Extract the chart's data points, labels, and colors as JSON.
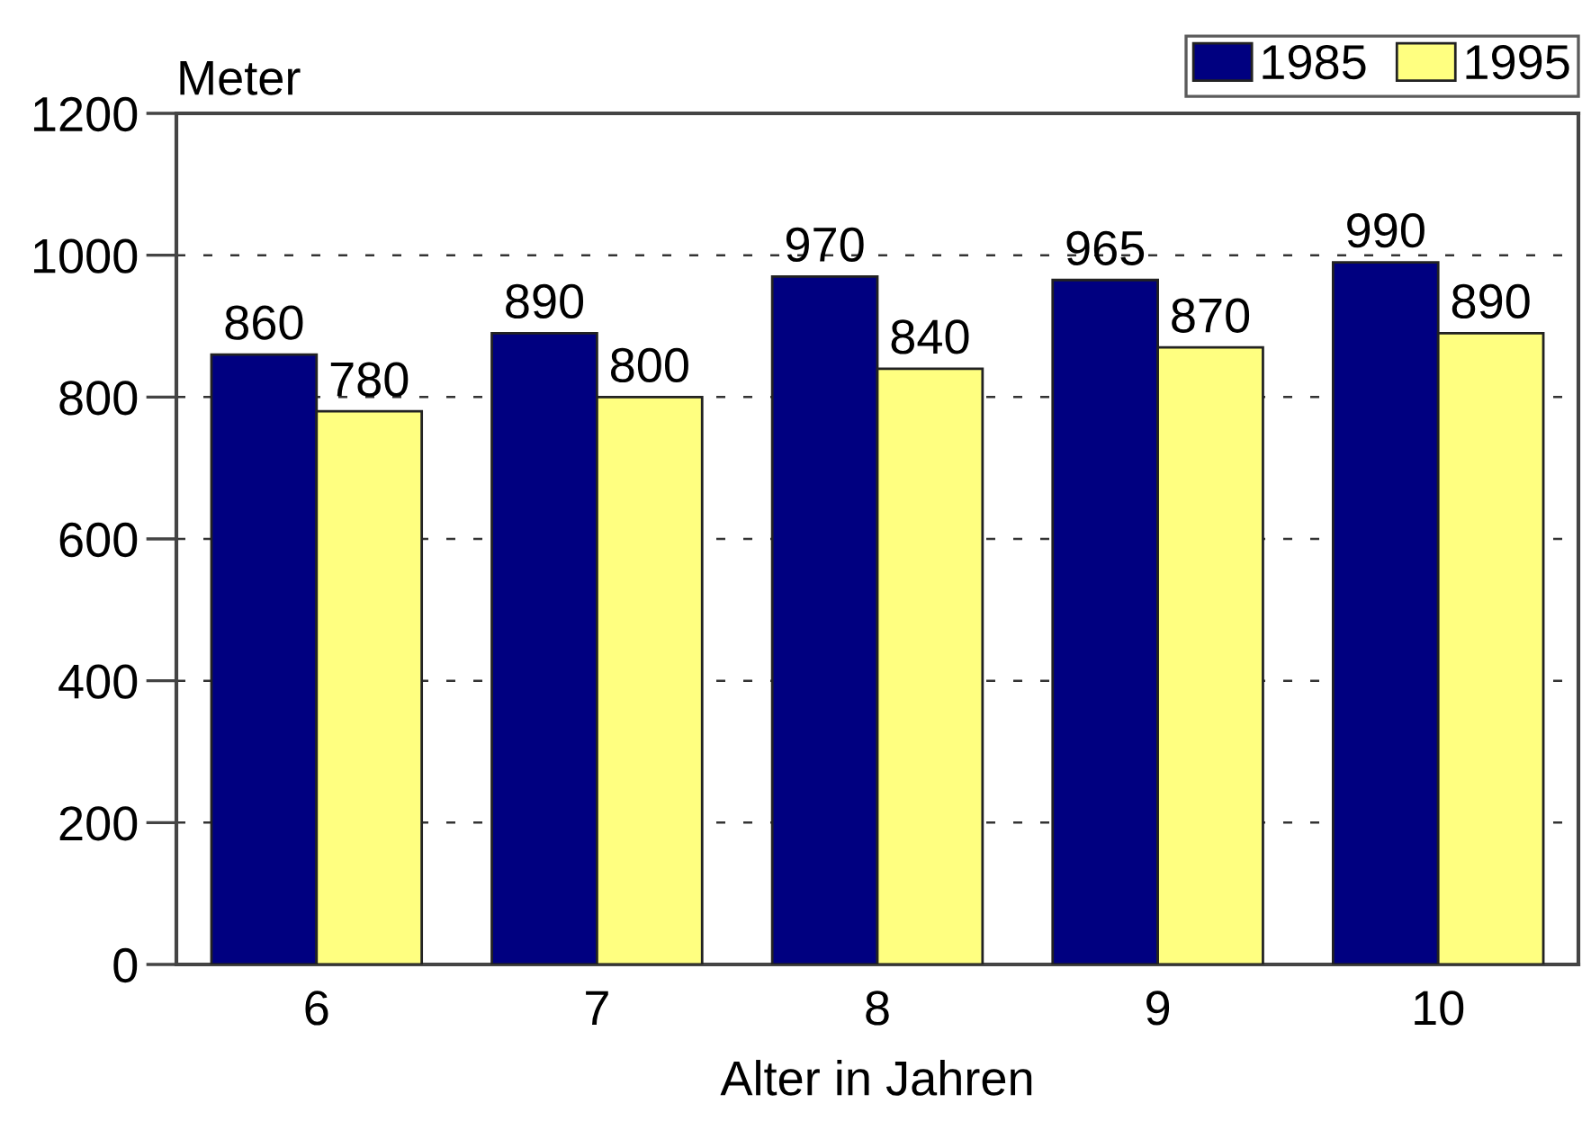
{
  "chart_data": {
    "type": "bar",
    "xlabel": "Alter in Jahren",
    "ylabel": "Meter",
    "categories": [
      "6",
      "7",
      "8",
      "9",
      "10"
    ],
    "series": [
      {
        "name": "1985",
        "color": "#000080",
        "values": [
          860,
          890,
          970,
          965,
          990
        ]
      },
      {
        "name": "1995",
        "color": "#ffff80",
        "values": [
          780,
          800,
          840,
          870,
          890
        ]
      }
    ],
    "ylim": [
      0,
      1200
    ],
    "yticks": [
      0,
      200,
      400,
      600,
      800,
      1000,
      1200
    ],
    "grid": "y",
    "legend": "top right",
    "data_labels": true
  }
}
